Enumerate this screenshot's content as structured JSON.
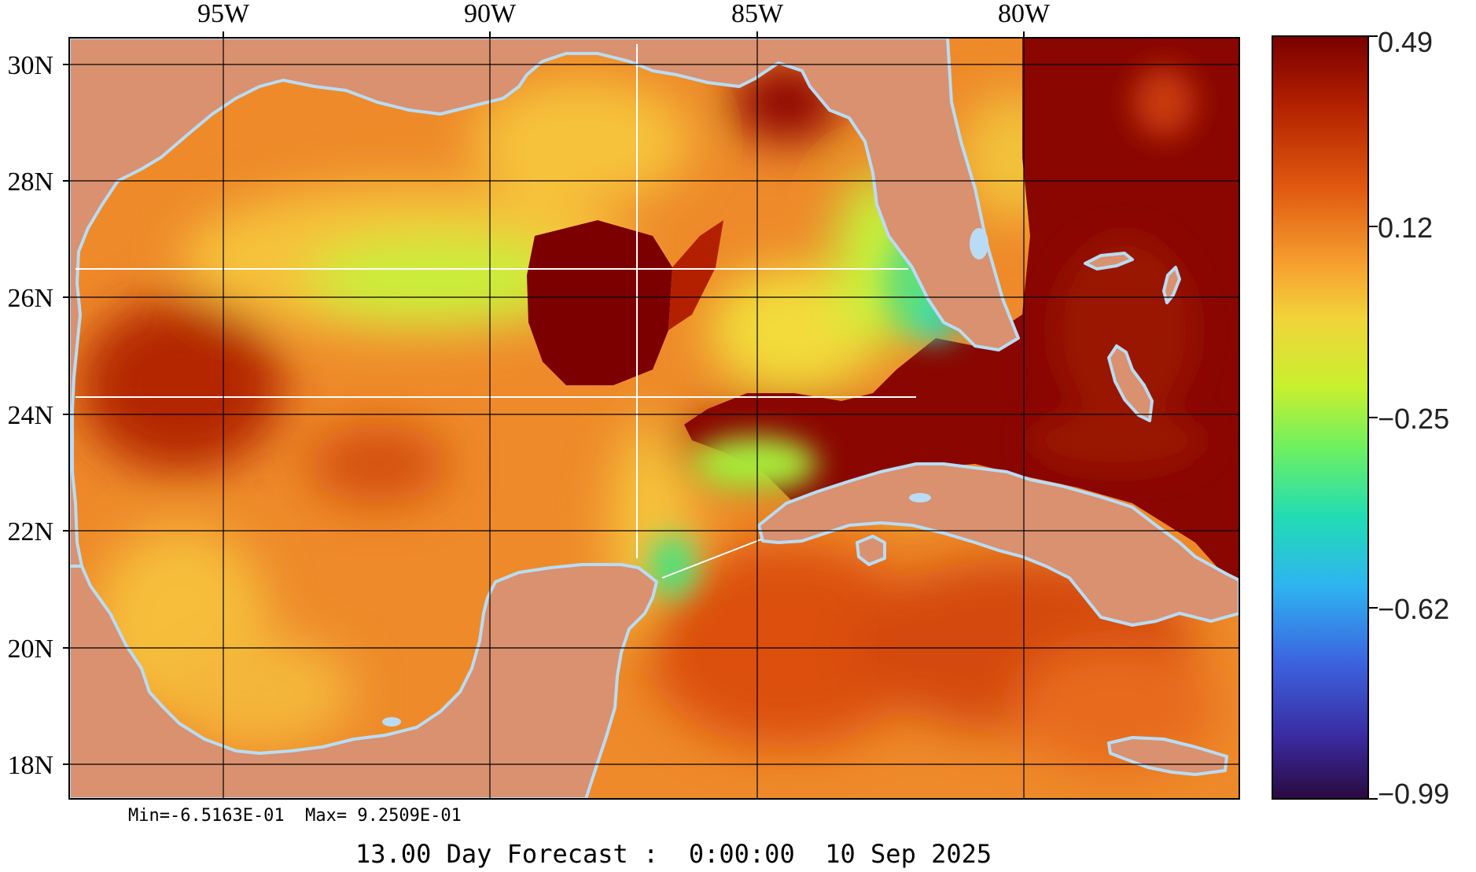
{
  "map": {
    "longitude_labels": [
      "95W",
      "90W",
      "85W",
      "80W"
    ],
    "latitude_labels": [
      "30N",
      "28N",
      "26N",
      "24N",
      "22N",
      "20N",
      "18N"
    ],
    "colors": {
      "land": "#d9916f",
      "lake": "#b9dcf4",
      "grid": "#000000",
      "track": "#ffffff"
    },
    "scalar_field": "sea surface height anomaly (colour-shaded)",
    "features": [
      "warm-eddy-central-gulf",
      "loop-current",
      "florida-coast-gradient",
      "yucatan-channel"
    ]
  },
  "colorbar": {
    "labels": [
      "0.49",
      "0.12",
      "−0.25",
      "−0.62",
      "−0.99"
    ],
    "colors_top_to_bottom": [
      "#7a0000",
      "#b32000",
      "#e05a10",
      "#f6a030",
      "#f2d43a",
      "#c8f02e",
      "#6ef060",
      "#22dcb4",
      "#2eb4f0",
      "#3c64e0",
      "#3a2aa0",
      "#2a0a40"
    ]
  },
  "stats": {
    "min_max_text": "Min=-6.5163E-01  Max= 9.2509E-01"
  },
  "caption": {
    "text": "13.00 Day Forecast :  0:00:00  10 Sep 2025"
  }
}
